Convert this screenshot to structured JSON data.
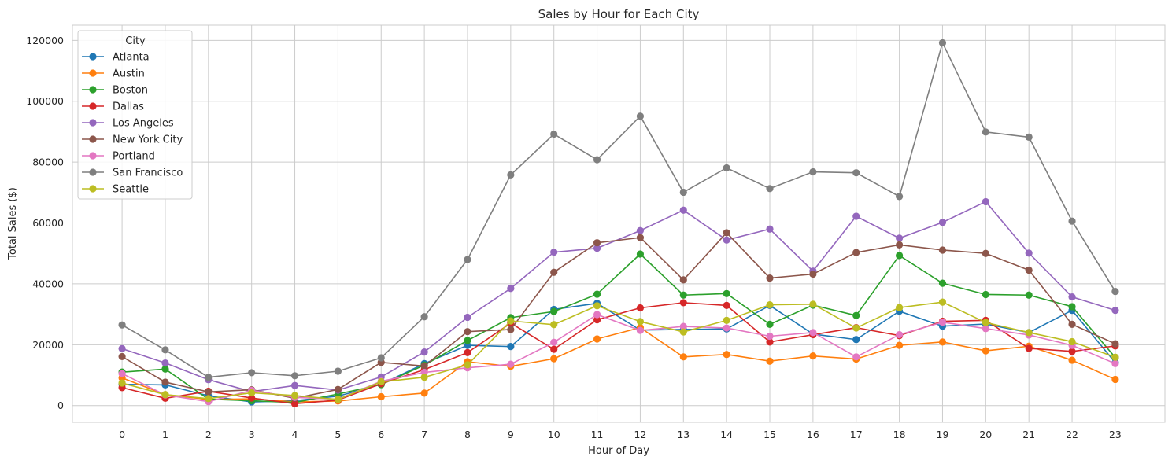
{
  "chart_data": {
    "type": "line",
    "title": "Sales by Hour for Each City",
    "xlabel": "Hour of Day",
    "ylabel": "Total Sales ($)",
    "x": [
      0,
      1,
      2,
      3,
      4,
      5,
      6,
      7,
      8,
      9,
      10,
      11,
      12,
      13,
      14,
      15,
      16,
      17,
      18,
      19,
      20,
      21,
      22,
      23
    ],
    "xlim": [
      -1.15,
      24.15
    ],
    "ylim": [
      -5500,
      125000
    ],
    "yticks": [
      0,
      20000,
      40000,
      60000,
      80000,
      100000,
      120000
    ],
    "ytick_labels": [
      "0",
      "20000",
      "40000",
      "60000",
      "80000",
      "100000",
      "120000"
    ],
    "grid": true,
    "legend_title": "City",
    "legend_position": "top-left",
    "series": [
      {
        "name": "Atlanta",
        "color": "#1f77b4",
        "values": [
          7000,
          6800,
          3200,
          1200,
          1600,
          3100,
          7000,
          13800,
          19800,
          19400,
          31600,
          33600,
          24800,
          25000,
          25200,
          32900,
          23500,
          21700,
          31000,
          26100,
          26800,
          24000,
          31300,
          14100
        ]
      },
      {
        "name": "Austin",
        "color": "#ff7f0e",
        "values": [
          9100,
          3600,
          2000,
          2200,
          1200,
          1500,
          2900,
          4100,
          14400,
          12900,
          15400,
          21900,
          25600,
          16000,
          16800,
          14600,
          16300,
          15300,
          19800,
          20900,
          18000,
          19500,
          14900,
          8600
        ]
      },
      {
        "name": "Boston",
        "color": "#2ca02c",
        "values": [
          11000,
          12000,
          2100,
          1600,
          1000,
          3800,
          6900,
          13300,
          21400,
          28900,
          30900,
          36600,
          49800,
          36300,
          36800,
          26700,
          33000,
          29600,
          49300,
          40200,
          36500,
          36300,
          32500,
          15800
        ]
      },
      {
        "name": "Dallas",
        "color": "#d62728",
        "values": [
          5900,
          2400,
          4700,
          2500,
          600,
          1800,
          7200,
          11800,
          17400,
          27100,
          18500,
          28200,
          32100,
          33800,
          32900,
          20900,
          23300,
          25600,
          23000,
          27700,
          28000,
          18800,
          17800,
          19600
        ]
      },
      {
        "name": "Los Angeles",
        "color": "#9467bd",
        "values": [
          18700,
          14000,
          8500,
          4600,
          6600,
          5100,
          9400,
          17600,
          29000,
          38500,
          50400,
          51700,
          57500,
          64200,
          54400,
          58000,
          44200,
          62200,
          55000,
          60200,
          67000,
          50100,
          35700,
          31300
        ]
      },
      {
        "name": "New York City",
        "color": "#8c564b",
        "values": [
          16100,
          7700,
          4500,
          5200,
          2400,
          5300,
          14200,
          13000,
          24300,
          25000,
          43800,
          53500,
          55200,
          41300,
          56800,
          41900,
          43200,
          50300,
          52800,
          51100,
          50000,
          44500,
          26700,
          20300
        ]
      },
      {
        "name": "Portland",
        "color": "#e377c2",
        "values": [
          10500,
          3500,
          1300,
          5000,
          2700,
          2100,
          8000,
          10900,
          12400,
          13600,
          20800,
          29900,
          24700,
          26000,
          25500,
          22800,
          24000,
          16000,
          23300,
          27400,
          25300,
          23200,
          19800,
          13800
        ]
      },
      {
        "name": "San Francisco",
        "color": "#7f7f7f",
        "values": [
          26500,
          18300,
          9300,
          10800,
          9800,
          11300,
          15700,
          29200,
          48000,
          75800,
          89200,
          80800,
          95100,
          70100,
          78100,
          71300,
          76800,
          76500,
          68700,
          119200,
          89900,
          88200,
          60600,
          37500
        ]
      },
      {
        "name": "Seattle",
        "color": "#bcbd22",
        "values": [
          7400,
          3600,
          2300,
          4200,
          3300,
          2000,
          7800,
          9300,
          13400,
          27800,
          26600,
          32800,
          27600,
          24200,
          28000,
          33100,
          33300,
          25500,
          32200,
          34000,
          27300,
          24000,
          21000,
          15900
        ]
      }
    ]
  }
}
